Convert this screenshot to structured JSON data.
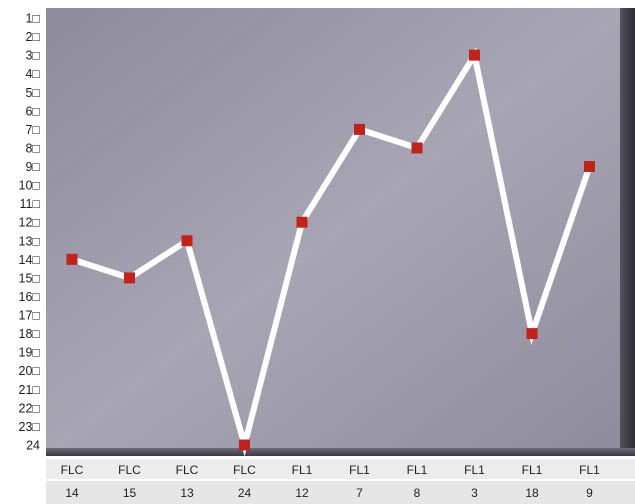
{
  "chart_data": {
    "type": "line",
    "title": "",
    "xlabel": "",
    "ylabel": "",
    "y_axis": {
      "reversed": true,
      "range": [
        1,
        24
      ],
      "tick_labels": [
        "1□",
        "2□",
        "3□",
        "4□",
        "5□",
        "6□",
        "7□",
        "8□",
        "9□",
        "10□",
        "11□",
        "12□",
        "13□",
        "14□",
        "15□",
        "16□",
        "17□",
        "18□",
        "19□",
        "20□",
        "21□",
        "22□",
        "23□",
        "24"
      ]
    },
    "categories": [
      {
        "top": "FLC",
        "bottom": "14"
      },
      {
        "top": "FLC",
        "bottom": "15"
      },
      {
        "top": "FLC",
        "bottom": "13"
      },
      {
        "top": "FLC",
        "bottom": "24"
      },
      {
        "top": "FL1",
        "bottom": "12"
      },
      {
        "top": "FL1",
        "bottom": "7"
      },
      {
        "top": "FL1",
        "bottom": "8"
      },
      {
        "top": "FL1",
        "bottom": "3"
      },
      {
        "top": "FL1",
        "bottom": "18"
      },
      {
        "top": "FL1",
        "bottom": "9"
      }
    ],
    "series": [
      {
        "values": [
          14,
          15,
          13,
          24,
          12,
          7,
          8,
          3,
          18,
          9
        ]
      }
    ],
    "grid": false,
    "legend": "none",
    "colors": {
      "line": "#ffffff",
      "marker": "#c0221c",
      "plot_background": "#8f8c9e",
      "label_band": "#e9e9e9"
    }
  }
}
